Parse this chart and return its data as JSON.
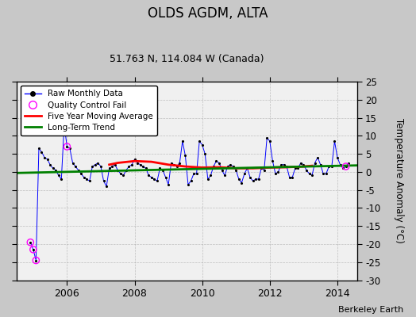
{
  "title": "OLDS AGDM, ALTA",
  "subtitle": "51.763 N, 114.084 W (Canada)",
  "ylabel": "Temperature Anomaly (°C)",
  "watermark": "Berkeley Earth",
  "xlim": [
    2004.5,
    2014.58
  ],
  "ylim": [
    -30,
    25
  ],
  "yticks": [
    -30,
    -25,
    -20,
    -15,
    -10,
    -5,
    0,
    5,
    10,
    15,
    20,
    25
  ],
  "xticks": [
    2006,
    2008,
    2010,
    2012,
    2014
  ],
  "plot_bg": "#f0f0f0",
  "fig_bg": "#c8c8c8",
  "raw_x": [
    2004.917,
    2005.0,
    2005.083,
    2005.167,
    2005.25,
    2005.333,
    2005.417,
    2005.5,
    2005.583,
    2005.667,
    2005.75,
    2005.833,
    2005.917,
    2006.0,
    2006.083,
    2006.167,
    2006.25,
    2006.333,
    2006.417,
    2006.5,
    2006.583,
    2006.667,
    2006.75,
    2006.833,
    2006.917,
    2007.0,
    2007.083,
    2007.167,
    2007.25,
    2007.333,
    2007.417,
    2007.5,
    2007.583,
    2007.667,
    2007.75,
    2007.833,
    2007.917,
    2008.0,
    2008.083,
    2008.167,
    2008.25,
    2008.333,
    2008.417,
    2008.5,
    2008.583,
    2008.667,
    2008.75,
    2008.833,
    2008.917,
    2009.0,
    2009.083,
    2009.167,
    2009.25,
    2009.333,
    2009.417,
    2009.5,
    2009.583,
    2009.667,
    2009.75,
    2009.833,
    2009.917,
    2010.0,
    2010.083,
    2010.167,
    2010.25,
    2010.333,
    2010.417,
    2010.5,
    2010.583,
    2010.667,
    2010.75,
    2010.833,
    2010.917,
    2011.0,
    2011.083,
    2011.167,
    2011.25,
    2011.333,
    2011.417,
    2011.5,
    2011.583,
    2011.667,
    2011.75,
    2011.833,
    2011.917,
    2012.0,
    2012.083,
    2012.167,
    2012.25,
    2012.333,
    2012.417,
    2012.5,
    2012.583,
    2012.667,
    2012.75,
    2012.833,
    2012.917,
    2013.0,
    2013.083,
    2013.167,
    2013.25,
    2013.333,
    2013.417,
    2013.5,
    2013.583,
    2013.667,
    2013.75,
    2013.833,
    2013.917,
    2014.0,
    2014.083,
    2014.167,
    2014.25,
    2014.333
  ],
  "raw_y": [
    -19.5,
    -21.5,
    -24.5,
    6.5,
    5.5,
    4.0,
    3.5,
    2.0,
    1.0,
    0.5,
    -1.0,
    -2.0,
    13.0,
    7.0,
    6.5,
    2.5,
    1.5,
    0.5,
    -0.5,
    -1.5,
    -2.0,
    -2.5,
    1.5,
    2.0,
    2.5,
    1.5,
    -2.5,
    -4.0,
    1.0,
    1.5,
    2.0,
    0.5,
    -0.5,
    -1.0,
    0.5,
    1.5,
    2.0,
    3.5,
    2.5,
    2.0,
    1.5,
    1.0,
    -1.0,
    -1.5,
    -2.0,
    -2.5,
    1.0,
    0.5,
    -1.5,
    -3.5,
    2.5,
    2.0,
    1.5,
    2.5,
    8.5,
    4.5,
    -3.5,
    -2.5,
    -0.5,
    -0.5,
    8.5,
    7.5,
    5.0,
    -2.0,
    -1.0,
    1.5,
    3.0,
    2.5,
    0.5,
    -1.0,
    1.5,
    2.0,
    1.5,
    0.5,
    -2.0,
    -3.0,
    -0.5,
    1.0,
    -1.5,
    -2.5,
    -2.0,
    -2.0,
    1.0,
    0.5,
    9.5,
    8.5,
    3.0,
    -0.5,
    0.0,
    2.0,
    2.0,
    1.5,
    -1.5,
    -1.5,
    1.0,
    1.0,
    2.5,
    2.0,
    0.5,
    -0.5,
    -1.0,
    2.5,
    4.0,
    2.0,
    -0.5,
    -0.5,
    1.5,
    1.5,
    8.5,
    4.0,
    2.0,
    1.0,
    1.5,
    2.5
  ],
  "qc_fail_x": [
    2004.917,
    2005.0,
    2005.083,
    2006.0,
    2014.25
  ],
  "qc_fail_y": [
    -19.5,
    -21.5,
    -24.5,
    7.0,
    1.5
  ],
  "moving_avg_x": [
    2007.25,
    2007.5,
    2008.0,
    2008.5,
    2009.0,
    2009.5,
    2010.0,
    2010.5,
    2011.0,
    2011.5,
    2012.0,
    2012.5,
    2013.0,
    2013.25
  ],
  "moving_avg_y": [
    2.0,
    2.5,
    3.0,
    2.8,
    2.0,
    1.5,
    1.2,
    1.3,
    1.0,
    1.0,
    1.2,
    1.3,
    1.5,
    1.7
  ],
  "trend_x": [
    2004.5,
    2014.58
  ],
  "trend_y": [
    -0.3,
    1.8
  ]
}
